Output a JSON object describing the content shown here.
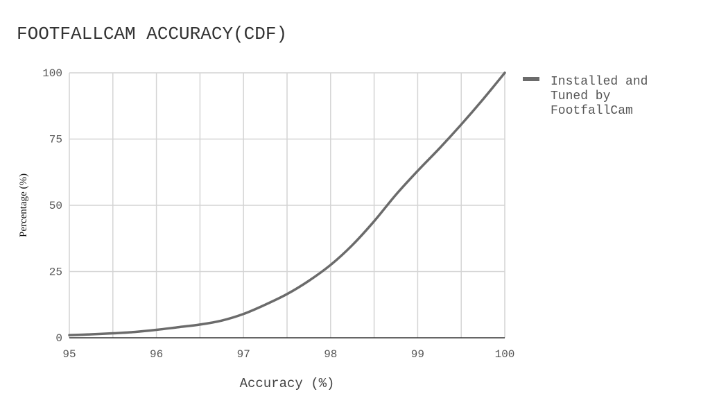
{
  "chart_data": {
    "type": "line",
    "title": "FOOTFALLCAM ACCURACY(CDF)",
    "xlabel": "Accuracy (%)",
    "ylabel": "Percentage (%)",
    "xlim": [
      95,
      100
    ],
    "ylim": [
      0,
      100
    ],
    "x_ticks": [
      "95",
      "96",
      "97",
      "98",
      "99",
      "100"
    ],
    "y_ticks": [
      "0",
      "25",
      "50",
      "75",
      "100"
    ],
    "grid": true,
    "legend_position": "right",
    "series": [
      {
        "name": "Installed and Tuned by FootfallCam",
        "color": "#6b6b6b",
        "x": [
          95,
          95.25,
          95.5,
          95.75,
          96,
          96.25,
          96.5,
          96.75,
          97,
          97.25,
          97.5,
          97.75,
          98,
          98.25,
          98.5,
          98.75,
          99,
          99.25,
          99.5,
          99.75,
          100
        ],
        "y": [
          1,
          1.3,
          1.7,
          2.2,
          3,
          4,
          5,
          6.5,
          9,
          12.5,
          16.5,
          21.5,
          27.5,
          35,
          44,
          54,
          63,
          71.5,
          80.5,
          90,
          100
        ]
      }
    ]
  }
}
